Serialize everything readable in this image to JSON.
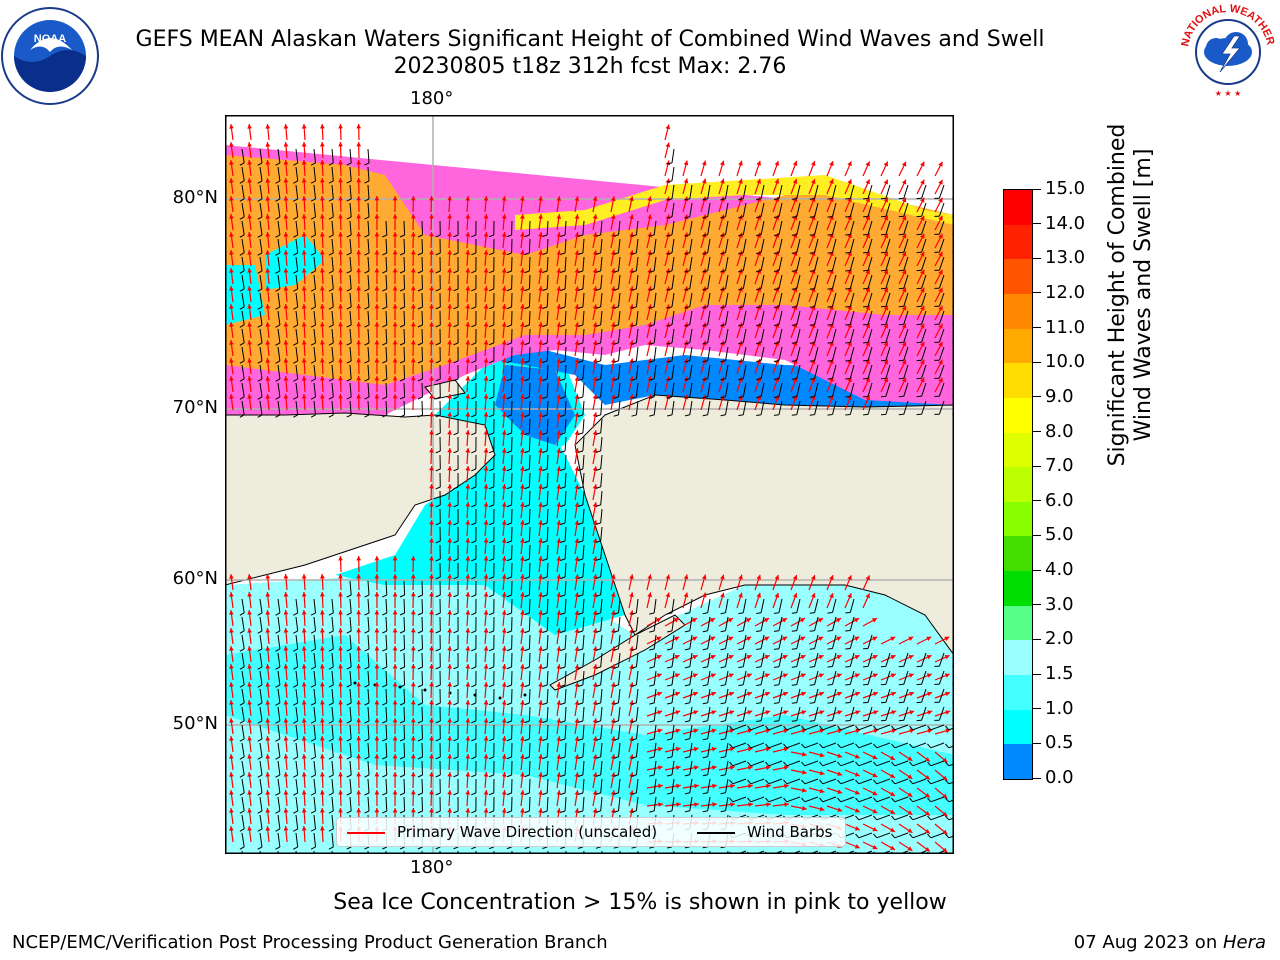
{
  "title": {
    "line1": "GEFS MEAN Alaskan Waters Significant Height of Combined Wind Waves and Swell",
    "line2": "20230805 t18z 312h fcst   Max: 2.76"
  },
  "logos": {
    "noaa_text": "NOAA",
    "nws_text": "NATIONAL WEATHER SERVICE"
  },
  "map": {
    "lon_labels": [
      "180°",
      "180°"
    ],
    "lat_labels": [
      "80°N",
      "70°N",
      "60°N",
      "50°N"
    ],
    "legend": {
      "wave_label": "Primary Wave Direction (unscaled)",
      "wave_color": "#ff0000",
      "wind_label": "Wind Barbs",
      "wind_color": "#000000"
    },
    "colors": {
      "land": "#eeecdc",
      "ice_pink": "#ff66dd",
      "ice_orange": "#ffaa33",
      "ice_yellow": "#ffee22",
      "open_light": "#99ffff",
      "open_cyan": "#33ffff",
      "open_blue": "#0088ff",
      "deep_blue": "#0000ff"
    }
  },
  "colorbar": {
    "label": "Significant Height of Combined Wind Waves and Swell [m]",
    "ticks": [
      "15.0",
      "14.0",
      "13.0",
      "12.0",
      "11.0",
      "10.0",
      "9.0",
      "8.0",
      "7.0",
      "6.0",
      "5.0",
      "4.0",
      "3.0",
      "2.0",
      "1.5",
      "1.0",
      "0.5",
      "0.0"
    ],
    "segments": [
      "#ff0000",
      "#ff2200",
      "#ff5500",
      "#ff8800",
      "#ffaa00",
      "#ffdd00",
      "#ffff00",
      "#ddff00",
      "#bbff00",
      "#88ff00",
      "#44dd00",
      "#00dd00",
      "#55ff88",
      "#99ffff",
      "#44ffff",
      "#00ffff",
      "#0088ff",
      "#0000ff"
    ]
  },
  "notes": {
    "ice": "Sea Ice Concentration > 15% is shown in pink to yellow",
    "footer_left": "NCEP/EMC/Verification Post Processing Product Generation Branch",
    "footer_right_date": "07 Aug 2023 on ",
    "footer_right_host": "Hera"
  }
}
